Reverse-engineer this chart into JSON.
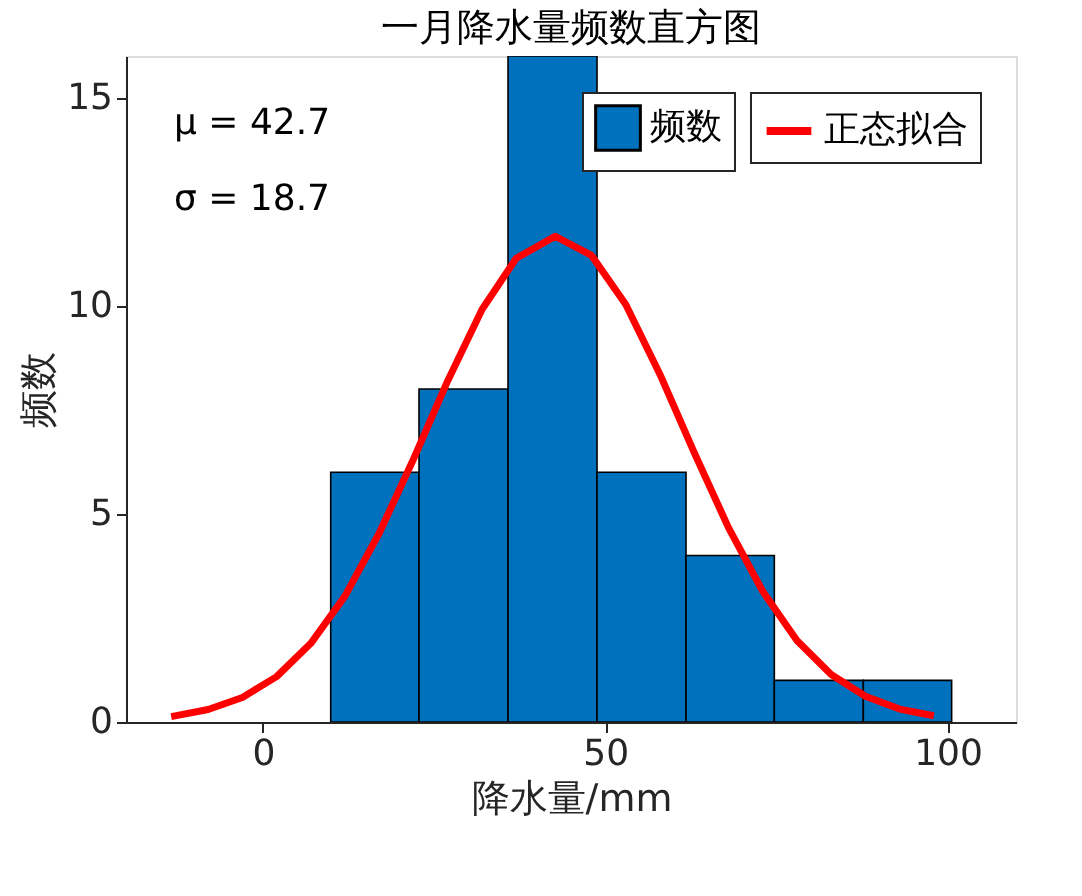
{
  "chart_data": {
    "type": "histogram",
    "title": "一月降水量频数直方图",
    "xlabel": "降水量/mm",
    "ylabel": "频数",
    "bins": [
      9.9,
      22.8,
      35.8,
      48.8,
      61.8,
      74.7,
      87.7,
      100.6
    ],
    "series": [
      {
        "name": "频数",
        "color": "#0072bd",
        "values": [
          6,
          8,
          16,
          6,
          4,
          1,
          1
        ]
      },
      {
        "name": "正态拟合",
        "type": "line",
        "color": "#ff0000",
        "x": [
          -13.4,
          -8,
          -3,
          2,
          7,
          12,
          17,
          22,
          27,
          32,
          37,
          42.7,
          48,
          53,
          58,
          63,
          68,
          73,
          78,
          83,
          88,
          93,
          98
        ],
        "values": [
          0.13,
          0.3,
          0.59,
          1.09,
          1.89,
          3.03,
          4.54,
          6.32,
          8.2,
          9.91,
          11.14,
          11.67,
          11.21,
          10.03,
          8.35,
          6.47,
          4.67,
          3.14,
          1.96,
          1.14,
          0.62,
          0.31,
          0.15
        ]
      }
    ],
    "xlim": [
      -20,
      110
    ],
    "xticks": [
      0,
      50,
      100
    ],
    "ylim": [
      0,
      16
    ],
    "yticks": [
      0,
      5,
      10,
      15
    ],
    "annotations": [
      "μ = 42.7",
      "σ = 18.7"
    ],
    "legend": "top right",
    "grid": false
  }
}
